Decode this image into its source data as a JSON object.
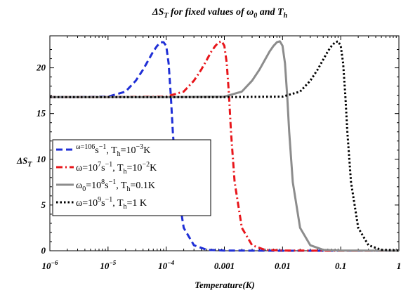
{
  "chart_data": {
    "type": "line",
    "title": {
      "main": "ΔS",
      "sub": "T",
      "rest": " for fixed values of ",
      "omega": "ω",
      "omega_sub": "0",
      "and": " and ",
      "t": "T",
      "t_sub": "h"
    },
    "xlabel": "Temperature(K)",
    "ylabel": {
      "main": "ΔS",
      "sub": "T"
    },
    "x_scale": "log",
    "xlim": [
      1e-06,
      1
    ],
    "ylim": [
      0,
      23.5
    ],
    "x_ticks": [
      {
        "value": 1e-06,
        "label": "10",
        "exp": "−6"
      },
      {
        "value": 1e-05,
        "label": "10",
        "exp": "−5"
      },
      {
        "value": 0.0001,
        "label": "10",
        "exp": "−4"
      },
      {
        "value": 0.001,
        "label": "0.001",
        "exp": ""
      },
      {
        "value": 0.01,
        "label": "0.01",
        "exp": ""
      },
      {
        "value": 0.1,
        "label": "0.1",
        "exp": ""
      },
      {
        "value": 1,
        "label": "1",
        "exp": ""
      }
    ],
    "y_ticks": [
      0,
      5,
      10,
      15,
      20
    ],
    "legend_position": "center-left",
    "series": [
      {
        "legend": [
          {
            "t": "ω=10",
            "s": "sup"
          },
          {
            "t": "6",
            "s": "sup"
          },
          {
            "t": "s",
            "s": ""
          },
          {
            "t": "−1",
            "s": "sup"
          },
          {
            "t": ", ",
            "s": ""
          },
          {
            "t": "T",
            "s": ""
          },
          {
            "t": "h",
            "s": "sub"
          },
          {
            "t": "=10",
            "s": ""
          },
          {
            "t": "−3",
            "s": "sup"
          },
          {
            "t": "K",
            "s": ""
          }
        ],
        "color": "#1f2fd6",
        "dash": "dash",
        "x": [
          1e-06,
          3e-06,
          1e-05,
          2e-05,
          3e-05,
          4e-05,
          5e-05,
          6e-05,
          7e-05,
          8e-05,
          9e-05,
          0.0001,
          0.00011,
          0.00012,
          0.00013,
          0.00015,
          0.0002,
          0.0003,
          0.0005,
          0.001,
          0.01,
          0.1,
          1
        ],
        "y": [
          16.8,
          16.8,
          16.85,
          17.4,
          18.6,
          19.8,
          20.9,
          21.8,
          22.4,
          22.8,
          22.8,
          22.4,
          20.5,
          17.0,
          13.0,
          7.5,
          2.5,
          0.6,
          0.1,
          0.02,
          0,
          0,
          0
        ]
      },
      {
        "legend": [
          {
            "t": "ω=10",
            "s": ""
          },
          {
            "t": "7",
            "s": "sup"
          },
          {
            "t": "s",
            "s": ""
          },
          {
            "t": "−1",
            "s": "sup"
          },
          {
            "t": ", ",
            "s": ""
          },
          {
            "t": "T",
            "s": ""
          },
          {
            "t": "h",
            "s": "sub"
          },
          {
            "t": "=10",
            "s": ""
          },
          {
            "t": "−2",
            "s": "sup"
          },
          {
            "t": "K",
            "s": ""
          }
        ],
        "color": "#e8161b",
        "dash": "dashdot",
        "x": [
          1e-06,
          1e-05,
          0.0001,
          0.0002,
          0.0003,
          0.0004,
          0.0005,
          0.0006,
          0.0007,
          0.0008,
          0.0009,
          0.001,
          0.0011,
          0.0012,
          0.0013,
          0.0015,
          0.002,
          0.003,
          0.005,
          0.01,
          0.1,
          1
        ],
        "y": [
          16.8,
          16.8,
          16.85,
          17.4,
          18.6,
          19.8,
          20.9,
          21.8,
          22.4,
          22.8,
          22.9,
          22.4,
          20.5,
          17.0,
          13.0,
          7.5,
          2.5,
          0.6,
          0.1,
          0.02,
          0,
          0
        ]
      },
      {
        "legend": [
          {
            "t": "ω",
            "s": ""
          },
          {
            "t": "0",
            "s": "sub"
          },
          {
            "t": "=10",
            "s": ""
          },
          {
            "t": "8",
            "s": "sup"
          },
          {
            "t": "s",
            "s": ""
          },
          {
            "t": "−1",
            "s": "sup"
          },
          {
            "t": ", ",
            "s": ""
          },
          {
            "t": "T",
            "s": ""
          },
          {
            "t": "h",
            "s": "sub"
          },
          {
            "t": "=0.1K",
            "s": ""
          }
        ],
        "color": "#8c8c8c",
        "dash": "solid",
        "x": [
          1e-06,
          0.0001,
          0.001,
          0.002,
          0.003,
          0.004,
          0.005,
          0.006,
          0.007,
          0.008,
          0.009,
          0.01,
          0.011,
          0.012,
          0.013,
          0.015,
          0.02,
          0.03,
          0.05,
          0.1,
          1
        ],
        "y": [
          16.8,
          16.8,
          16.85,
          17.4,
          18.6,
          19.8,
          20.9,
          21.8,
          22.4,
          22.8,
          22.9,
          22.4,
          20.5,
          17.0,
          13.0,
          7.5,
          2.5,
          0.6,
          0.1,
          0.02,
          0
        ]
      },
      {
        "legend": [
          {
            "t": "ω=10",
            "s": ""
          },
          {
            "t": "9",
            "s": "sup"
          },
          {
            "t": "s",
            "s": ""
          },
          {
            "t": "−1",
            "s": "sup"
          },
          {
            "t": ", ",
            "s": ""
          },
          {
            "t": "T",
            "s": ""
          },
          {
            "t": "h",
            "s": "sub"
          },
          {
            "t": "=1 K",
            "s": ""
          }
        ],
        "color": "#000000",
        "dash": "dot",
        "x": [
          1e-06,
          0.001,
          0.01,
          0.02,
          0.03,
          0.04,
          0.05,
          0.06,
          0.07,
          0.08,
          0.09,
          0.1,
          0.11,
          0.12,
          0.13,
          0.15,
          0.2,
          0.3,
          0.5,
          1
        ],
        "y": [
          16.8,
          16.8,
          16.85,
          17.4,
          18.6,
          19.8,
          20.9,
          21.8,
          22.4,
          22.8,
          22.9,
          22.4,
          20.5,
          17.0,
          13.0,
          7.5,
          2.5,
          0.6,
          0.1,
          0.02
        ]
      }
    ]
  }
}
